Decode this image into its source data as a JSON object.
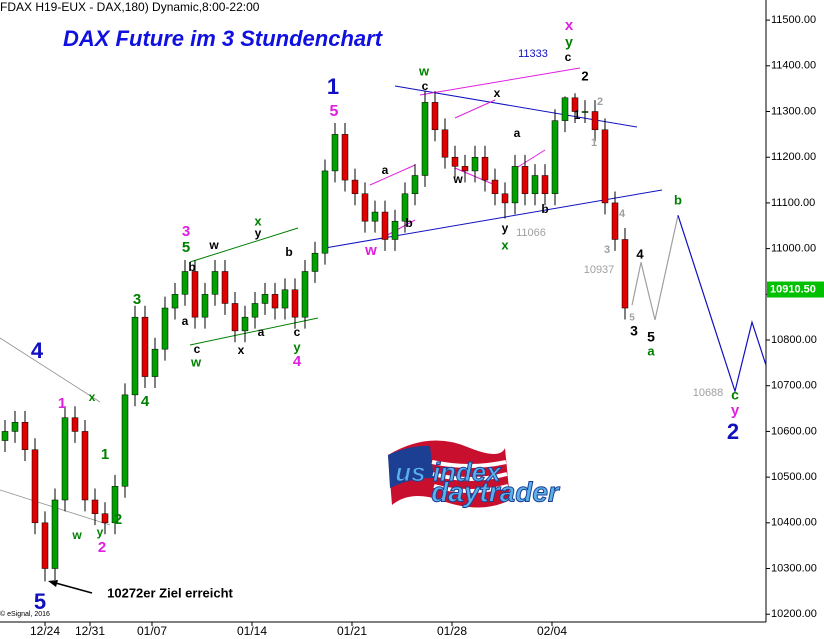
{
  "header": "FDAX H19-EUX - DAX,180) Dynamic,8:00-22:00",
  "copyright": "© eSignal, 2016",
  "logo": {
    "top": "us index",
    "bottom": "daytrader"
  },
  "chart_data": {
    "type": "candlestick",
    "title": "DAX Future im 3 Stundenchart",
    "up_color": "#00a000",
    "down_color": "#e00000",
    "x": [
      0.5,
      1.5,
      2.5,
      3.5,
      4.5,
      5.5,
      6.5,
      7.5,
      8.5,
      9.5,
      10.5,
      11.5,
      12.5,
      13.5,
      14.5,
      15.5,
      16.5,
      17.5,
      18.5,
      19.5,
      20.5,
      21.5,
      22.5,
      23.5,
      24.5,
      25.5,
      26.5,
      27.5,
      28.5,
      29.5,
      30.5,
      31.5,
      32.5,
      33.5,
      34.5,
      35.5,
      36.5,
      37.5,
      38.5,
      39.5,
      40.5,
      41.5,
      42.5,
      43.5,
      44.5,
      45.5,
      46.5,
      47.5,
      48.5,
      49.5,
      50.5,
      51.5,
      52.5,
      53.5,
      54.5,
      55.5,
      56.5,
      57.5,
      58.5,
      59.5,
      60.5,
      61.5,
      62.5
    ],
    "open": [
      10580,
      10600,
      10620,
      10560,
      10400,
      10300,
      10450,
      10630,
      10600,
      10450,
      10420,
      10400,
      10480,
      10680,
      10850,
      10720,
      10780,
      10870,
      10900,
      10950,
      10850,
      10900,
      10950,
      10880,
      10820,
      10850,
      10880,
      10900,
      10870,
      10910,
      10850,
      10950,
      10990,
      11170,
      11250,
      11150,
      11120,
      11060,
      11080,
      11020,
      11060,
      11120,
      11160,
      11320,
      11260,
      11200,
      11180,
      11170,
      11200,
      11150,
      11120,
      11100,
      11180,
      11120,
      11160,
      11120,
      11280,
      11330,
      11300,
      11300,
      11260,
      11100,
      11020
    ],
    "high": [
      10625,
      10645,
      10645,
      10585,
      10425,
      10475,
      10655,
      10655,
      10625,
      10475,
      10445,
      10505,
      10705,
      10875,
      10875,
      10805,
      10895,
      10925,
      10975,
      10975,
      10925,
      10975,
      10975,
      10905,
      10875,
      10905,
      10925,
      10925,
      10935,
      10935,
      10975,
      11015,
      11195,
      11275,
      11275,
      11175,
      11145,
      11105,
      11105,
      11085,
      11145,
      11185,
      11345,
      11345,
      11285,
      11225,
      11205,
      11225,
      11225,
      11175,
      11145,
      11205,
      11205,
      11185,
      11185,
      11305,
      11333,
      11340,
      11325,
      11325,
      11285,
      11125,
      11045
    ],
    "low": [
      10555,
      10575,
      10535,
      10375,
      10272,
      10275,
      10425,
      10575,
      10425,
      10395,
      10375,
      10375,
      10455,
      10655,
      10695,
      10695,
      10755,
      10845,
      10875,
      10825,
      10825,
      10875,
      10855,
      10795,
      10795,
      10825,
      10855,
      10845,
      10845,
      10825,
      10825,
      10925,
      10965,
      11145,
      11125,
      11095,
      11035,
      11035,
      10995,
      10995,
      11035,
      11095,
      11135,
      11235,
      11175,
      11155,
      11145,
      11145,
      11125,
      11095,
      11066,
      11075,
      11095,
      11095,
      11095,
      11095,
      11255,
      11275,
      11275,
      11235,
      11075,
      10995,
      10845
    ],
    "close": [
      10600,
      10620,
      10560,
      10400,
      10300,
      10450,
      10630,
      10600,
      10450,
      10420,
      10400,
      10480,
      10680,
      10850,
      10720,
      10780,
      10870,
      10900,
      10950,
      10850,
      10900,
      10950,
      10880,
      10820,
      10850,
      10880,
      10900,
      10870,
      10910,
      10850,
      10950,
      10990,
      11170,
      11250,
      11150,
      11120,
      11060,
      11080,
      11020,
      11060,
      11120,
      11160,
      11320,
      11260,
      11200,
      11180,
      11170,
      11200,
      11150,
      11120,
      11100,
      11180,
      11120,
      11160,
      11120,
      11280,
      11330,
      11300,
      11300,
      11260,
      11100,
      11020,
      10870
    ],
    "projections": [
      {
        "color": "#a0a0a0",
        "x": [
          63.2,
          64.1,
          65.5,
          67.8
        ],
        "y": [
          10876,
          10970,
          10844,
          11073
        ]
      },
      {
        "color": "#1010c0",
        "x": [
          67.8,
          73.5,
          75.2,
          76.6
        ],
        "y": [
          11073,
          10688,
          10839,
          10745
        ]
      }
    ],
    "last_price": {
      "value": 10910.5,
      "label": "10910.50"
    },
    "xlim": [
      0,
      76.6
    ],
    "xticks": [
      {
        "value": 4.5,
        "label": "12/24"
      },
      {
        "value": 9,
        "label": "12/31"
      },
      {
        "value": 15.2,
        "label": "01/07"
      },
      {
        "value": 25.2,
        "label": "01/14"
      },
      {
        "value": 35.2,
        "label": "01/21"
      },
      {
        "value": 45.2,
        "label": "01/28"
      },
      {
        "value": 55.2,
        "label": "02/04"
      }
    ],
    "ylim": [
      10183,
      11544
    ],
    "yticks": [
      {
        "value": 10200,
        "label": "10200.00"
      },
      {
        "value": 10300,
        "label": "10300.00"
      },
      {
        "value": 10400,
        "label": "10400.00"
      },
      {
        "value": 10500,
        "label": "10500.00"
      },
      {
        "value": 10600,
        "label": "10600.00"
      },
      {
        "value": 10700,
        "label": "10700.00"
      },
      {
        "value": 10800,
        "label": "10800.00"
      },
      {
        "value": 10900,
        "label": "10900.00"
      },
      {
        "value": 11000,
        "label": "11000.00"
      },
      {
        "value": 11100,
        "label": "11100.00"
      },
      {
        "value": 11200,
        "label": "11200.00"
      },
      {
        "value": 11300,
        "label": "11300.00"
      },
      {
        "value": 11400,
        "label": "11400.00"
      },
      {
        "value": 11500,
        "label": "11500.00"
      }
    ],
    "annotations": [
      {
        "text": "1",
        "color": "#1010c0"
      },
      {
        "text": "5",
        "color": "#e020e0"
      },
      {
        "text": "4",
        "color": "#1010c0"
      },
      {
        "text": "1",
        "color": "#e020e0"
      },
      {
        "text": "x",
        "color": "#008000"
      },
      {
        "text": "1",
        "color": "#008000"
      },
      {
        "text": "w",
        "color": "#008000"
      },
      {
        "text": "y",
        "color": "#008000"
      },
      {
        "text": "2",
        "color": "#e020e0"
      },
      {
        "text": "2",
        "color": "#008000"
      },
      {
        "text": "5",
        "color": "#1010c0"
      },
      {
        "text": "4",
        "color": "#008000"
      },
      {
        "text": "3",
        "color": "#008000"
      },
      {
        "text": "3",
        "color": "#e020e0"
      },
      {
        "text": "5",
        "color": "#008000"
      },
      {
        "text": "b",
        "color": "#000000"
      },
      {
        "text": "a",
        "color": "#000000"
      },
      {
        "text": "w",
        "color": "#000000"
      },
      {
        "text": "c",
        "color": "#000000"
      },
      {
        "text": "w",
        "color": "#008000"
      },
      {
        "text": "x",
        "color": "#008000"
      },
      {
        "text": "y",
        "color": "#000000"
      },
      {
        "text": "b",
        "color": "#000000"
      },
      {
        "text": "a",
        "color": "#000000"
      },
      {
        "text": "x",
        "color": "#000000"
      },
      {
        "text": "c",
        "color": "#000000"
      },
      {
        "text": "y",
        "color": "#008000"
      },
      {
        "text": "4",
        "color": "#e020e0"
      },
      {
        "text": "a",
        "color": "#000000"
      },
      {
        "text": "b",
        "color": "#000000"
      },
      {
        "text": "w",
        "color": "#e020e0"
      },
      {
        "text": "w",
        "color": "#008000"
      },
      {
        "text": "c",
        "color": "#000000"
      },
      {
        "text": "x",
        "color": "#000000"
      },
      {
        "text": "a",
        "color": "#000000"
      },
      {
        "text": "w",
        "color": "#000000"
      },
      {
        "text": "b",
        "color": "#000000"
      },
      {
        "text": "y",
        "color": "#000000"
      },
      {
        "text": "x",
        "color": "#008000"
      },
      {
        "text": "11066",
        "color": "#a0a0a0"
      },
      {
        "text": "11333",
        "color": "#1010c0"
      },
      {
        "text": "x",
        "color": "#e020e0"
      },
      {
        "text": "y",
        "color": "#008000"
      },
      {
        "text": "c",
        "color": "#000000"
      },
      {
        "text": "2",
        "color": "#000000"
      },
      {
        "text": "1",
        "color": "#000000"
      },
      {
        "text": "2",
        "color": "#a0a0a0"
      },
      {
        "text": "1",
        "color": "#a0a0a0"
      },
      {
        "text": "4",
        "color": "#a0a0a0"
      },
      {
        "text": "3",
        "color": "#a0a0a0"
      },
      {
        "text": "10937",
        "color": "#a0a0a0"
      },
      {
        "text": "4",
        "color": "#000000"
      },
      {
        "text": "5",
        "color": "#a0a0a0"
      },
      {
        "text": "3",
        "color": "#000000"
      },
      {
        "text": "5",
        "color": "#000000"
      },
      {
        "text": "a",
        "color": "#008000"
      },
      {
        "text": "b",
        "color": "#008000"
      },
      {
        "text": "10688",
        "color": "#a0a0a0"
      },
      {
        "text": "c",
        "color": "#008000"
      },
      {
        "text": "y",
        "color": "#e020e0"
      },
      {
        "text": "2",
        "color": "#1010c0"
      },
      {
        "text": "10272er Ziel erreicht",
        "color": "#000000"
      }
    ]
  }
}
